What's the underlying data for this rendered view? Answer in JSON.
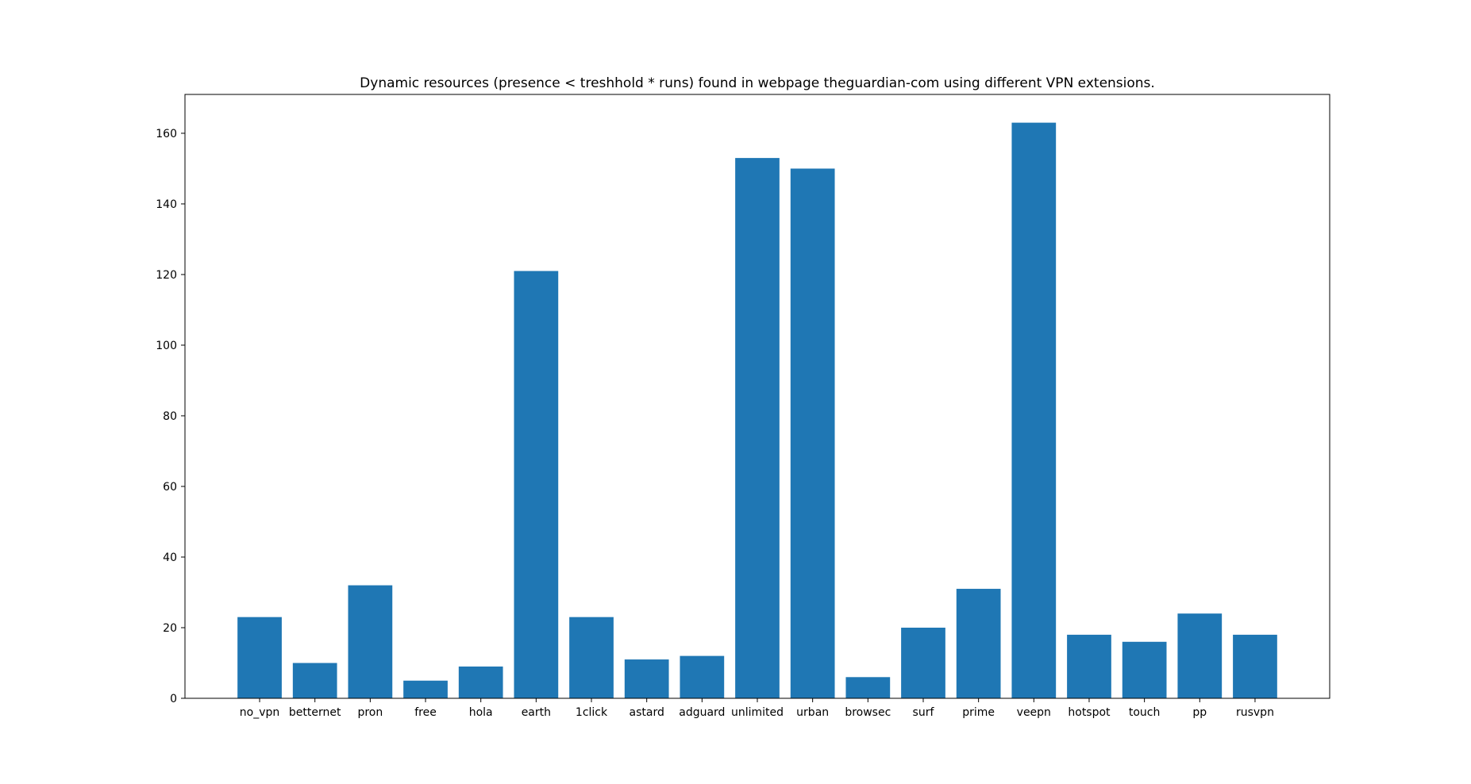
{
  "chart_data": {
    "type": "bar",
    "title": "Dynamic resources (presence < treshhold * runs) found in webpage theguardian-com using different VPN extensions.",
    "xlabel": "",
    "ylabel": "",
    "categories": [
      "no_vpn",
      "betternet",
      "pron",
      "free",
      "hola",
      "earth",
      "1click",
      "astard",
      "adguard",
      "unlimited",
      "urban",
      "browsec",
      "surf",
      "prime",
      "veepn",
      "hotspot",
      "touch",
      "pp",
      "rusvpn"
    ],
    "values": [
      23,
      10,
      32,
      5,
      9,
      121,
      23,
      11,
      12,
      153,
      150,
      6,
      20,
      31,
      163,
      18,
      16,
      24,
      18
    ],
    "ylim": [
      0,
      171
    ],
    "yticks": [
      0,
      20,
      40,
      60,
      80,
      100,
      120,
      140,
      160
    ],
    "grid": false,
    "legend": "none",
    "bar_color": "#1f77b4"
  }
}
